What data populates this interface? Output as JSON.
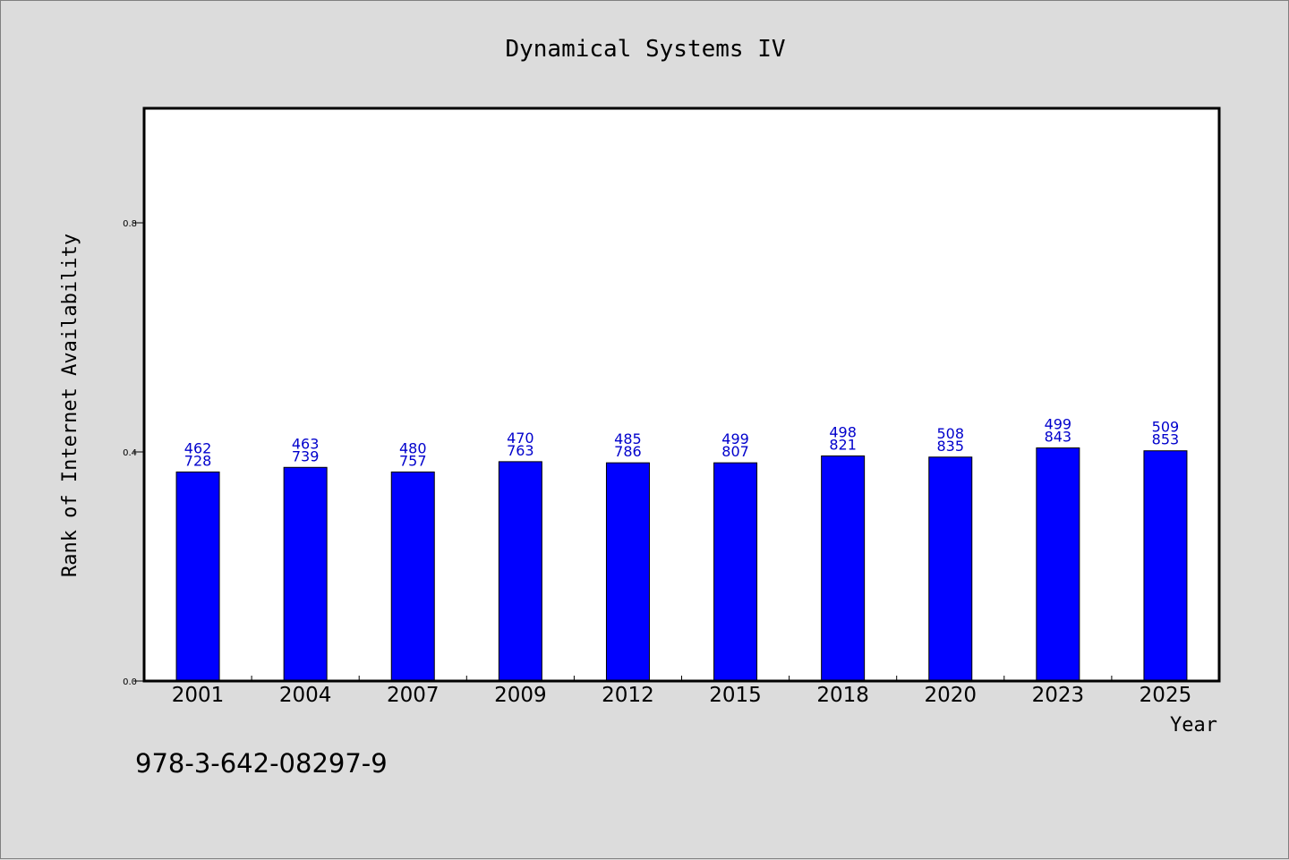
{
  "chart_data": {
    "type": "bar",
    "title": "Dynamical Systems IV",
    "xlabel": "Year",
    "ylabel": "Rank of Internet Availability",
    "ylim": [
      0,
      1.0
    ],
    "yticks": [
      "0.0",
      "0.4",
      "0.8"
    ],
    "grid": false,
    "categories": [
      "2001",
      "2004",
      "2007",
      "2009",
      "2012",
      "2015",
      "2018",
      "2020",
      "2023",
      "2025"
    ],
    "values": [
      0.365,
      0.373,
      0.365,
      0.383,
      0.381,
      0.381,
      0.393,
      0.391,
      0.407,
      0.402
    ],
    "bar_labels": [
      [
        "462",
        "728"
      ],
      [
        "463",
        "739"
      ],
      [
        "480",
        "757"
      ],
      [
        "470",
        "763"
      ],
      [
        "485",
        "786"
      ],
      [
        "499",
        "807"
      ],
      [
        "498",
        "821"
      ],
      [
        "508",
        "835"
      ],
      [
        "499",
        "843"
      ],
      [
        "509",
        "853"
      ]
    ],
    "bar_color": "#0000ff",
    "label_color": "#0000cc"
  },
  "footer": {
    "isbn": "978-3-642-08297-9"
  }
}
